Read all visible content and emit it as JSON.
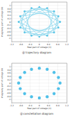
{
  "chart_data": [
    {
      "type": "line",
      "title": "ⓐ trajectory diagram",
      "x_label": "Real part of voltage (V)",
      "y_label": "Imaginary part of voltage (V)",
      "x": [
        0.9,
        -0.34,
        -0.64,
        0.83,
        0,
        -0.83,
        0.64,
        0.34,
        -0.9,
        0.34,
        0.64,
        -0.83,
        0,
        0.83,
        -0.64,
        -0.34,
        0.9,
        0.34,
        -0.64,
        -0.83,
        0,
        0.83,
        0.64,
        -0.34,
        -0.9,
        -0.34,
        0.64,
        0.83,
        0,
        -0.83,
        -0.64,
        0.34,
        0.9
      ],
      "values": [
        0,
        0.83,
        -0.64,
        -0.34,
        0.9,
        -0.34,
        -0.64,
        0.83,
        0,
        -0.83,
        0.64,
        0.34,
        -0.9,
        0.34,
        0.64,
        -0.83,
        0,
        0.83,
        0.64,
        -0.34,
        -0.9,
        -0.34,
        0.64,
        0.83,
        0,
        -0.83,
        -0.64,
        0.34,
        0.9,
        0.34,
        -0.64,
        -0.83,
        0
      ],
      "color": "#5cc6e6",
      "marker": "circle",
      "xlim": [
        -1.2,
        1.2
      ],
      "xticks": [
        -1.2,
        -0.8,
        -0.4,
        0,
        0.4,
        0.8,
        1.2
      ],
      "ylim": [
        -1.2,
        1.2
      ],
      "yticks": [
        -1,
        -0.8,
        -0.6,
        -0.4,
        -0.2,
        0,
        0.2,
        0.4,
        0.6,
        0.8,
        1
      ],
      "grid": true
    },
    {
      "type": "scatter",
      "title": "ⓑ constellation diagram",
      "x_label": "Real part of voltage (V)",
      "y_label": "Imaginary part of voltage (V)",
      "x": [
        0.9,
        0.83,
        0.64,
        0.34,
        0,
        -0.34,
        -0.64,
        -0.83,
        -0.9,
        -0.83,
        -0.64,
        -0.34,
        0,
        0.34,
        0.64,
        0.83
      ],
      "values": [
        0,
        0.34,
        0.64,
        0.83,
        0.9,
        0.83,
        0.64,
        0.34,
        0,
        -0.34,
        -0.64,
        -0.83,
        -0.9,
        -0.83,
        -0.64,
        -0.34
      ],
      "color": "#4fc0e8",
      "marker": "circle",
      "xlim": [
        -1.2,
        1.2
      ],
      "xticks": [
        -1.2,
        -0.8,
        -0.4,
        0,
        0.4,
        0.8,
        1.2
      ],
      "ylim": [
        -1.2,
        1.2
      ],
      "yticks": [
        -1,
        -0.8,
        -0.6,
        -0.4,
        -0.2,
        0,
        0.2,
        0.4,
        0.6,
        0.8,
        1
      ],
      "grid": true
    }
  ]
}
